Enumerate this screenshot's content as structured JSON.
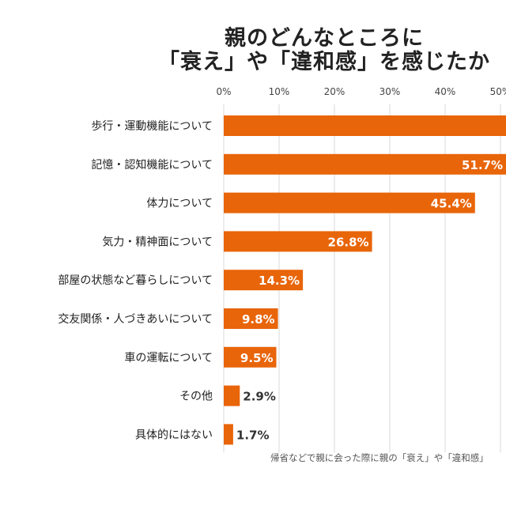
{
  "chart_data": {
    "type": "bar",
    "orientation": "horizontal",
    "title_lines": [
      "親のどんなところに",
      "「衰え」や「違和感」を感じたか"
    ],
    "categories": [
      "歩行・運動機能について",
      "記憶・認知機能について",
      "体力について",
      "気力・精神面について",
      "部屋の状態など暮らしについて",
      "交友関係・人づきあいについて",
      "車の運転について",
      "その他",
      "具体的にはない"
    ],
    "values": [
      null,
      51.7,
      45.4,
      26.8,
      14.3,
      9.8,
      9.5,
      2.9,
      1.7
    ],
    "value_labels": [
      "",
      "51.7%",
      "45.4%",
      "26.8%",
      "14.3%",
      "9.8%",
      "9.5%",
      "2.9%",
      "1.7%"
    ],
    "x_ticks": [
      "0%",
      "10%",
      "20%",
      "30%",
      "40%",
      "50%"
    ],
    "xlim": [
      0,
      50
    ],
    "grid": true,
    "bar_color": "#e8650a",
    "grid_color": "#d9d9d9",
    "footnote": "帰省などで親に会った際に親の「衰え」や「違和感」"
  }
}
